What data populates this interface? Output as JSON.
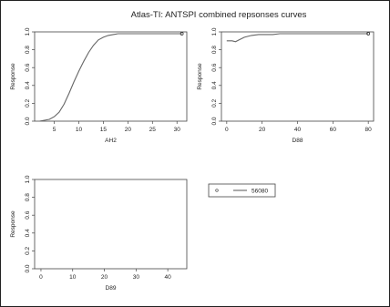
{
  "figure": {
    "title": "Atlas-TI: ANTSPI  combined repsonses curves"
  },
  "chart_data": [
    {
      "type": "line",
      "xlabel": "AH2",
      "ylabel": "Response",
      "xticks": [
        5,
        10,
        15,
        20,
        25,
        30
      ],
      "yticks": [
        "0.0",
        "0.2",
        "0.4",
        "0.6",
        "0.8",
        "1.0"
      ],
      "xlim": [
        1,
        32
      ],
      "ylim": [
        0,
        1.0
      ],
      "series": [
        {
          "x": [
            2,
            3,
            4,
            5,
            6,
            7,
            8,
            9,
            10,
            11,
            12,
            13,
            14,
            15,
            16,
            17,
            18,
            19,
            20,
            22,
            24,
            26,
            28,
            30,
            31
          ],
          "y": [
            0.0,
            0.01,
            0.02,
            0.05,
            0.1,
            0.19,
            0.31,
            0.44,
            0.56,
            0.67,
            0.77,
            0.85,
            0.91,
            0.94,
            0.96,
            0.97,
            0.98,
            0.98,
            0.98,
            0.98,
            0.98,
            0.98,
            0.98,
            0.98,
            0.98
          ]
        }
      ],
      "end_marker": {
        "x": 31,
        "y": 0.98
      }
    },
    {
      "type": "line",
      "xlabel": "D88",
      "ylabel": "Response",
      "xticks": [
        0,
        20,
        40,
        60,
        80
      ],
      "yticks": [
        "0.0",
        "0.2",
        "0.4",
        "0.6",
        "0.8",
        "1.0"
      ],
      "xlim": [
        -3,
        83
      ],
      "ylim": [
        0,
        1.0
      ],
      "series": [
        {
          "x": [
            0,
            3,
            5,
            7,
            10,
            14,
            18,
            22,
            26,
            30,
            40,
            50,
            60,
            70,
            80
          ],
          "y": [
            0.9,
            0.9,
            0.89,
            0.91,
            0.94,
            0.96,
            0.97,
            0.97,
            0.97,
            0.98,
            0.98,
            0.98,
            0.98,
            0.98,
            0.98
          ]
        }
      ],
      "end_marker": {
        "x": 80,
        "y": 0.98
      }
    },
    {
      "type": "line",
      "xlabel": "D89",
      "ylabel": "Response",
      "xticks": [
        0,
        10,
        20,
        30,
        40
      ],
      "yticks": [
        "0.0",
        "0.2",
        "0.4",
        "0.6",
        "0.8",
        "1.0"
      ],
      "xlim": [
        -2,
        46
      ],
      "ylim": [
        0,
        1.0
      ],
      "series": []
    }
  ],
  "legend": {
    "entries": [
      {
        "label": "56080"
      }
    ]
  }
}
